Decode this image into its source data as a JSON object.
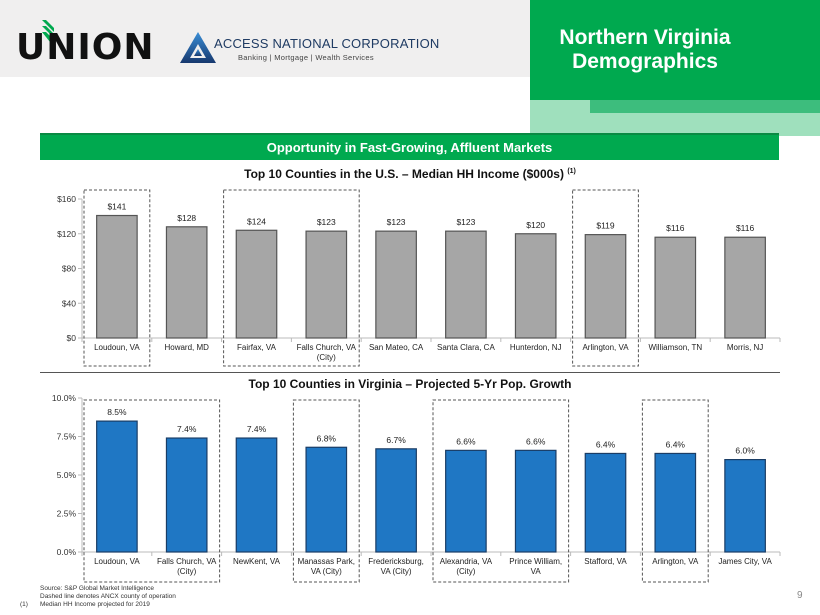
{
  "header": {
    "union_logo_text": "UNION",
    "anc_name": "ACCESS NATIONAL CORPORATION",
    "anc_tagline": "Banking  |  Mortgage  |  Wealth Services",
    "title_line1": "Northern Virginia",
    "title_line2": "Demographics"
  },
  "section_title": "Opportunity in Fast-Growing, Affluent Markets",
  "colors": {
    "brand_green": "#00a94f",
    "income_bar": "#a6a6a6",
    "growth_bar": "#1f77c4"
  },
  "chart_data": [
    {
      "type": "bar",
      "title": "Top 10 Counties in the U.S. – Median HH Income ($000s)",
      "title_footnote": "(1)",
      "xlabel": "",
      "ylabel": "",
      "categories": [
        "Loudoun, VA",
        "Howard, MD",
        "Fairfax, VA",
        "Falls Church, VA (City)",
        "San Mateo, CA",
        "Santa Clara, CA",
        "Hunterdon, NJ",
        "Arlington, VA",
        "Williamson, TN",
        "Morris, NJ"
      ],
      "category_lines": [
        [
          "Loudoun, VA"
        ],
        [
          "Howard, MD"
        ],
        [
          "Fairfax, VA"
        ],
        [
          "Falls Church, VA",
          "(City)"
        ],
        [
          "San Mateo, CA"
        ],
        [
          "Santa Clara, CA"
        ],
        [
          "Hunterdon, NJ"
        ],
        [
          "Arlington, VA"
        ],
        [
          "Williamson, TN"
        ],
        [
          "Morris, NJ"
        ]
      ],
      "values": [
        141,
        128,
        124,
        123,
        123,
        123,
        120,
        119,
        116,
        116
      ],
      "data_labels": [
        "$141",
        "$128",
        "$124",
        "$123",
        "$123",
        "$123",
        "$120",
        "$119",
        "$116",
        "$116"
      ],
      "ylim": [
        0,
        160
      ],
      "yticks": [
        0,
        40,
        80,
        120,
        160
      ],
      "ytick_labels": [
        "$0",
        "$40",
        "$80",
        "$120",
        "$160"
      ],
      "grid": false,
      "highlight_groups": [
        [
          0,
          0
        ],
        [
          2,
          3
        ],
        [
          7,
          7
        ]
      ]
    },
    {
      "type": "bar",
      "title": "Top 10 Counties in Virginia – Projected 5-Yr Pop. Growth",
      "xlabel": "",
      "ylabel": "",
      "categories": [
        "Loudoun, VA",
        "Falls Church, VA (City)",
        "NewKent, VA",
        "Manassas Park, VA (City)",
        "Fredericksburg, VA (City)",
        "Alexandria, VA (City)",
        "Prince William, VA",
        "Stafford, VA",
        "Arlington, VA",
        "James City, VA"
      ],
      "category_lines": [
        [
          "Loudoun, VA"
        ],
        [
          "Falls Church, VA",
          "(City)"
        ],
        [
          "NewKent, VA"
        ],
        [
          "Manassas Park,",
          "VA (City)"
        ],
        [
          "Fredericksburg,",
          "VA (City)"
        ],
        [
          "Alexandria, VA",
          "(City)"
        ],
        [
          "Prince William,",
          "VA"
        ],
        [
          "Stafford, VA"
        ],
        [
          "Arlington, VA"
        ],
        [
          "James City, VA"
        ]
      ],
      "values": [
        8.5,
        7.4,
        7.4,
        6.8,
        6.7,
        6.6,
        6.6,
        6.4,
        6.4,
        6.0
      ],
      "data_labels": [
        "8.5%",
        "7.4%",
        "7.4%",
        "6.8%",
        "6.7%",
        "6.6%",
        "6.6%",
        "6.4%",
        "6.4%",
        "6.0%"
      ],
      "ylim": [
        0,
        10
      ],
      "yticks": [
        0,
        2.5,
        5,
        7.5,
        10
      ],
      "ytick_labels": [
        "0.0%",
        "2.5%",
        "5.0%",
        "7.5%",
        "10.0%"
      ],
      "grid": false,
      "highlight_groups": [
        [
          0,
          1
        ],
        [
          3,
          3
        ],
        [
          5,
          6
        ],
        [
          8,
          8
        ]
      ]
    }
  ],
  "footnotes": {
    "source": "Source: S&P Global Market Intelligence",
    "dashed_note": "Dashed line denotes ANCX county of operation",
    "note1_marker": "(1)",
    "note1": "Median HH Income projected for 2019"
  },
  "page_number": "9"
}
